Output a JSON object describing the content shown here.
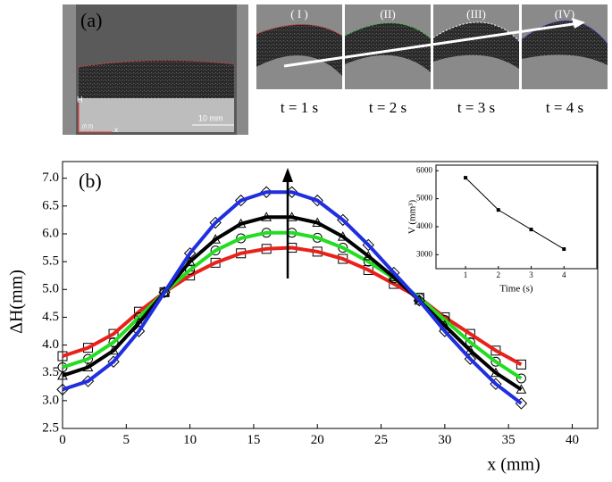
{
  "panel_a": {
    "label": "(a)",
    "frames": [
      "( I )",
      "(II)",
      "(III)",
      "(IV)"
    ],
    "times": [
      "t = 1 s",
      "t = 2 s",
      "t = 3 s",
      "t = 4 s"
    ],
    "scale_bar": "10 mm",
    "axis_h": "H",
    "axis_x": "x",
    "origin": "(0,0)"
  },
  "chart_data": [
    {
      "type": "line",
      "panel": "(b)",
      "ylabel": "ΔH(mm)",
      "xlabel": "x (mm)",
      "x": [
        0,
        2,
        4,
        6,
        8,
        10,
        12,
        14,
        16,
        18,
        20,
        22,
        24,
        26,
        28,
        30,
        32,
        34,
        36
      ],
      "series": [
        {
          "color": "#e8221b",
          "marker": "square",
          "values": [
            3.8,
            3.95,
            4.2,
            4.6,
            4.95,
            5.25,
            5.48,
            5.65,
            5.73,
            5.75,
            5.68,
            5.55,
            5.35,
            5.1,
            4.85,
            4.5,
            4.2,
            3.9,
            3.65
          ]
        },
        {
          "color": "#22dd22",
          "marker": "circle",
          "values": [
            3.6,
            3.75,
            4.05,
            4.5,
            4.95,
            5.35,
            5.7,
            5.92,
            6.02,
            6.02,
            5.93,
            5.75,
            5.5,
            5.2,
            4.85,
            4.45,
            4.05,
            3.7,
            3.4
          ]
        },
        {
          "color": "#000000",
          "marker": "triangle",
          "values": [
            3.45,
            3.6,
            3.9,
            4.4,
            4.95,
            5.5,
            5.9,
            6.18,
            6.3,
            6.3,
            6.2,
            5.95,
            5.6,
            5.22,
            4.8,
            4.35,
            3.9,
            3.5,
            3.2
          ]
        },
        {
          "color": "#1f2fe0",
          "marker": "diamond",
          "values": [
            3.2,
            3.35,
            3.7,
            4.25,
            4.95,
            5.65,
            6.2,
            6.6,
            6.75,
            6.75,
            6.6,
            6.25,
            5.8,
            5.3,
            4.8,
            4.25,
            3.75,
            3.3,
            2.95
          ]
        }
      ],
      "xlim": [
        0,
        42
      ],
      "xticks": [
        0,
        5,
        10,
        15,
        20,
        25,
        30,
        35,
        40
      ],
      "ylim": [
        2.5,
        7.3
      ],
      "yticks": [
        2.5,
        {
          "value": 3,
          "label": "3.0"
        },
        3.5,
        {
          "value": 4,
          "label": "4.0"
        },
        4.5,
        {
          "value": 5,
          "label": "5.0"
        },
        5.5,
        {
          "value": 6,
          "label": "6.0"
        },
        6.5,
        {
          "value": 7,
          "label": "7.0"
        }
      ]
    },
    {
      "type": "line",
      "ylabel": "V (mm³)",
      "xlabel": "Time (s)",
      "x": [
        1,
        2,
        3,
        4
      ],
      "series": [
        {
          "color": "#000000",
          "marker": "square",
          "values": [
            5750,
            4600,
            3900,
            3200
          ]
        }
      ],
      "xlim": [
        0.1,
        5.0
      ],
      "xticks": [
        1,
        2,
        3,
        4
      ],
      "ylim": [
        2500,
        6200
      ],
      "yticks": [
        3000,
        4000,
        5000,
        6000
      ]
    }
  ]
}
